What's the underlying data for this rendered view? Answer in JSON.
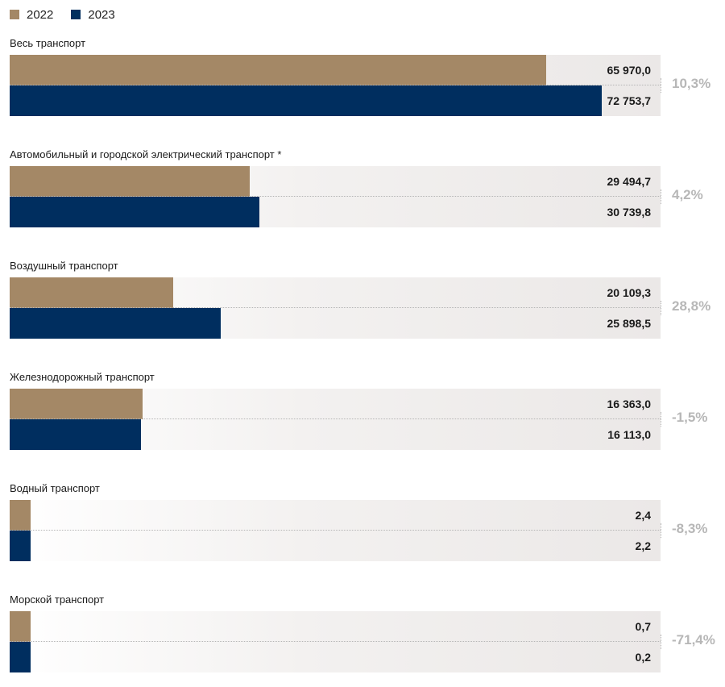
{
  "legend": [
    {
      "label": "2022",
      "color": "#a48866"
    },
    {
      "label": "2023",
      "color": "#002e5f"
    }
  ],
  "chart_data": {
    "type": "bar",
    "orientation": "horizontal",
    "title": "",
    "xlabel": "",
    "ylabel": "",
    "legend_position": "top-left",
    "grid": false,
    "xlim": [
      0,
      80000
    ],
    "categories": [
      "Весь транспорт",
      "Автомобильный и городской электрический транспорт *",
      "Воздушный транспорт",
      "Железнодорожный транспорт",
      "Водный транспорт",
      "Морской транспорт"
    ],
    "series": [
      {
        "name": "2022",
        "color": "#a48866",
        "values": [
          65970.0,
          29494.7,
          20109.3,
          16363.0,
          2.4,
          0.7
        ]
      },
      {
        "name": "2023",
        "color": "#002e5f",
        "values": [
          72753.7,
          30739.8,
          25898.5,
          16113.0,
          2.2,
          0.2
        ]
      }
    ],
    "value_labels": [
      [
        "65 970,0",
        "72 753,7"
      ],
      [
        "29 494,7",
        "30 739,8"
      ],
      [
        "20 109,3",
        "25 898,5"
      ],
      [
        "16 363,0",
        "16 113,0"
      ],
      [
        "2,4",
        "2,2"
      ],
      [
        "0,7",
        "0,2"
      ]
    ],
    "change_labels": [
      "10,3%",
      "4,2%",
      "28,8%",
      "-1,5%",
      "-8,3%",
      "-71,4%"
    ]
  }
}
